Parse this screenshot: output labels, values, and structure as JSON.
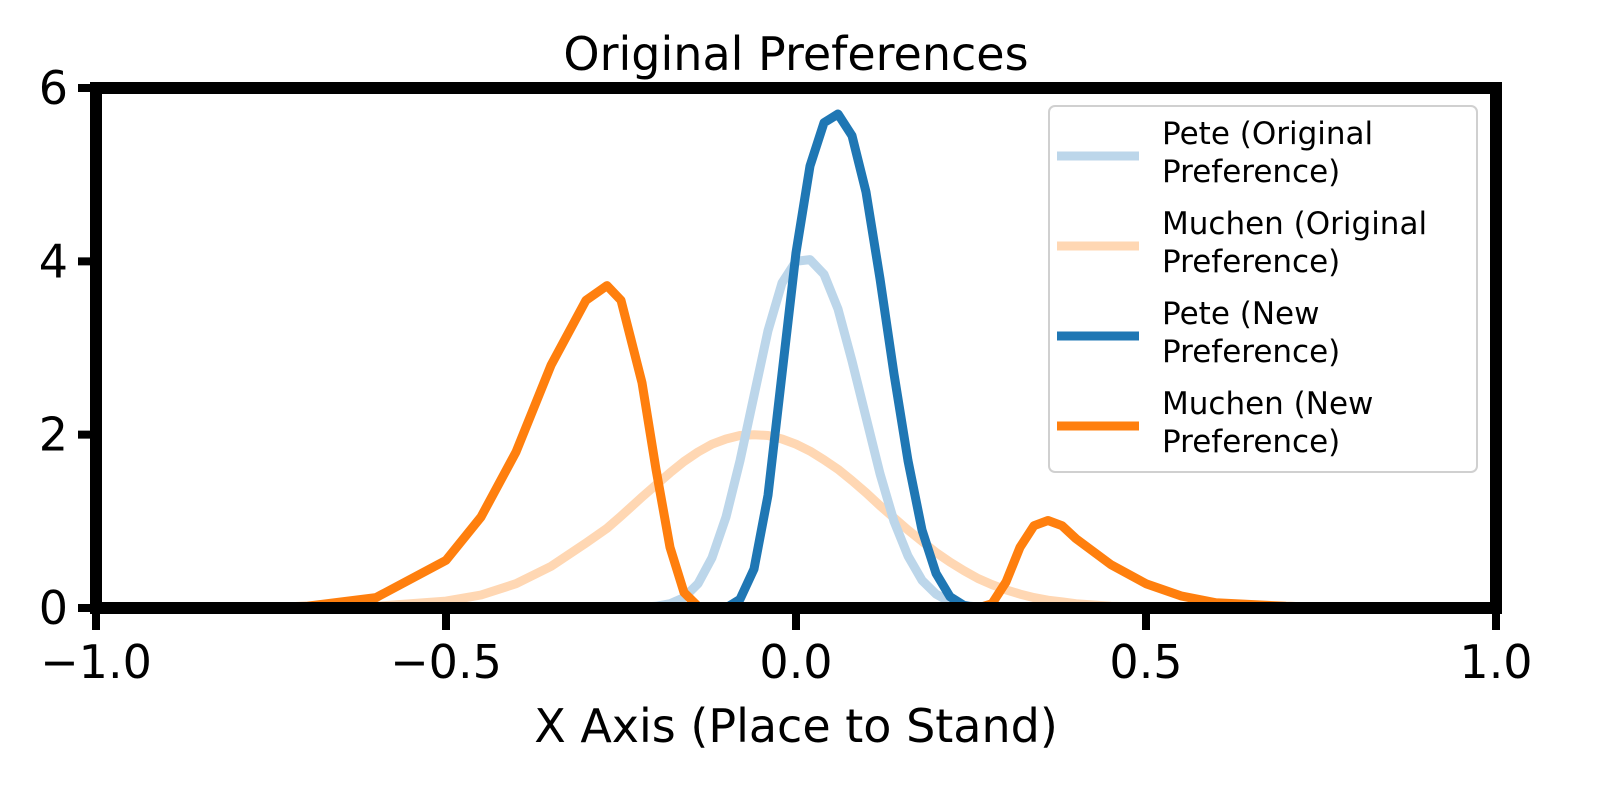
{
  "chart_data": {
    "type": "line",
    "title": "Original Preferences",
    "xlabel": "X Axis (Place to Stand)",
    "ylabel": "",
    "xlim": [
      -1.0,
      1.0
    ],
    "ylim": [
      0,
      6
    ],
    "x_ticks": [
      "−1.0",
      "−0.5",
      "0.0",
      "0.5",
      "1.0"
    ],
    "x_tick_values": [
      -1.0,
      -0.5,
      0.0,
      0.5,
      1.0
    ],
    "y_ticks": [
      "0",
      "2",
      "4",
      "6"
    ],
    "y_tick_values": [
      0,
      2,
      4,
      6
    ],
    "grid": false,
    "legend_position": "top-right",
    "x": [
      -1.0,
      -0.9,
      -0.8,
      -0.7,
      -0.6,
      -0.5,
      -0.45,
      -0.4,
      -0.35,
      -0.3,
      -0.27,
      -0.25,
      -0.22,
      -0.2,
      -0.18,
      -0.16,
      -0.14,
      -0.12,
      -0.1,
      -0.08,
      -0.06,
      -0.04,
      -0.02,
      0.0,
      0.02,
      0.04,
      0.06,
      0.08,
      0.1,
      0.12,
      0.14,
      0.16,
      0.18,
      0.2,
      0.22,
      0.24,
      0.26,
      0.28,
      0.3,
      0.32,
      0.34,
      0.36,
      0.38,
      0.4,
      0.45,
      0.5,
      0.55,
      0.6,
      0.7,
      0.8,
      0.9,
      1.0
    ],
    "series": [
      {
        "name": "Pete (Original\nPreference)",
        "legend_lines": [
          "Pete (Original",
          "Preference)"
        ],
        "color": "#bcd6ea",
        "values": [
          0,
          0,
          0,
          0,
          0,
          0,
          0,
          0,
          0,
          0,
          0,
          0,
          0.01,
          0.02,
          0.05,
          0.12,
          0.28,
          0.58,
          1.05,
          1.7,
          2.45,
          3.2,
          3.75,
          4.0,
          4.02,
          3.85,
          3.45,
          2.85,
          2.2,
          1.55,
          1.0,
          0.6,
          0.32,
          0.16,
          0.07,
          0.03,
          0.01,
          0,
          0,
          0,
          0,
          0,
          0,
          0,
          0,
          0,
          0,
          0,
          0,
          0,
          0,
          0
        ]
      },
      {
        "name": "Muchen (Original\nPreference)",
        "legend_lines": [
          "Muchen (Original",
          "Preference)"
        ],
        "color": "#ffd7b3",
        "values": [
          0,
          0,
          0,
          0,
          0.02,
          0.08,
          0.15,
          0.28,
          0.48,
          0.75,
          0.92,
          1.06,
          1.28,
          1.42,
          1.56,
          1.69,
          1.8,
          1.89,
          1.95,
          1.99,
          2.0,
          1.99,
          1.95,
          1.89,
          1.81,
          1.71,
          1.6,
          1.47,
          1.33,
          1.18,
          1.04,
          0.9,
          0.77,
          0.64,
          0.53,
          0.43,
          0.34,
          0.27,
          0.21,
          0.16,
          0.12,
          0.09,
          0.07,
          0.05,
          0.02,
          0.01,
          0,
          0,
          0,
          0,
          0,
          0
        ]
      },
      {
        "name": "Pete (New\nPreference)",
        "legend_lines": [
          "Pete (New",
          "Preference)"
        ],
        "color": "#1f77b4",
        "values": [
          0,
          0,
          0,
          0,
          0,
          0,
          0,
          0,
          0,
          0,
          0,
          0,
          0,
          0,
          0,
          0,
          0,
          0,
          0,
          0.1,
          0.45,
          1.3,
          2.7,
          4.1,
          5.1,
          5.6,
          5.7,
          5.45,
          4.8,
          3.8,
          2.7,
          1.7,
          0.9,
          0.4,
          0.13,
          0.03,
          0,
          0,
          0,
          0,
          0,
          0,
          0,
          0,
          0,
          0,
          0,
          0,
          0,
          0,
          0,
          0
        ]
      },
      {
        "name": "Muchen (New\nPreference)",
        "legend_lines": [
          "Muchen (New",
          "Preference)"
        ],
        "color": "#ff7f0e",
        "values": [
          0,
          0,
          0,
          0.02,
          0.12,
          0.55,
          1.05,
          1.8,
          2.8,
          3.55,
          3.72,
          3.55,
          2.6,
          1.6,
          0.7,
          0.18,
          0.02,
          0,
          0,
          0,
          0,
          0,
          0,
          0,
          0,
          0,
          0,
          0,
          0,
          0,
          0,
          0,
          0,
          0,
          0,
          0,
          0,
          0.05,
          0.3,
          0.7,
          0.95,
          1.01,
          0.95,
          0.8,
          0.5,
          0.28,
          0.14,
          0.06,
          0.02,
          0,
          0,
          0
        ]
      }
    ],
    "draw_order": [
      1,
      0,
      3,
      2
    ]
  }
}
